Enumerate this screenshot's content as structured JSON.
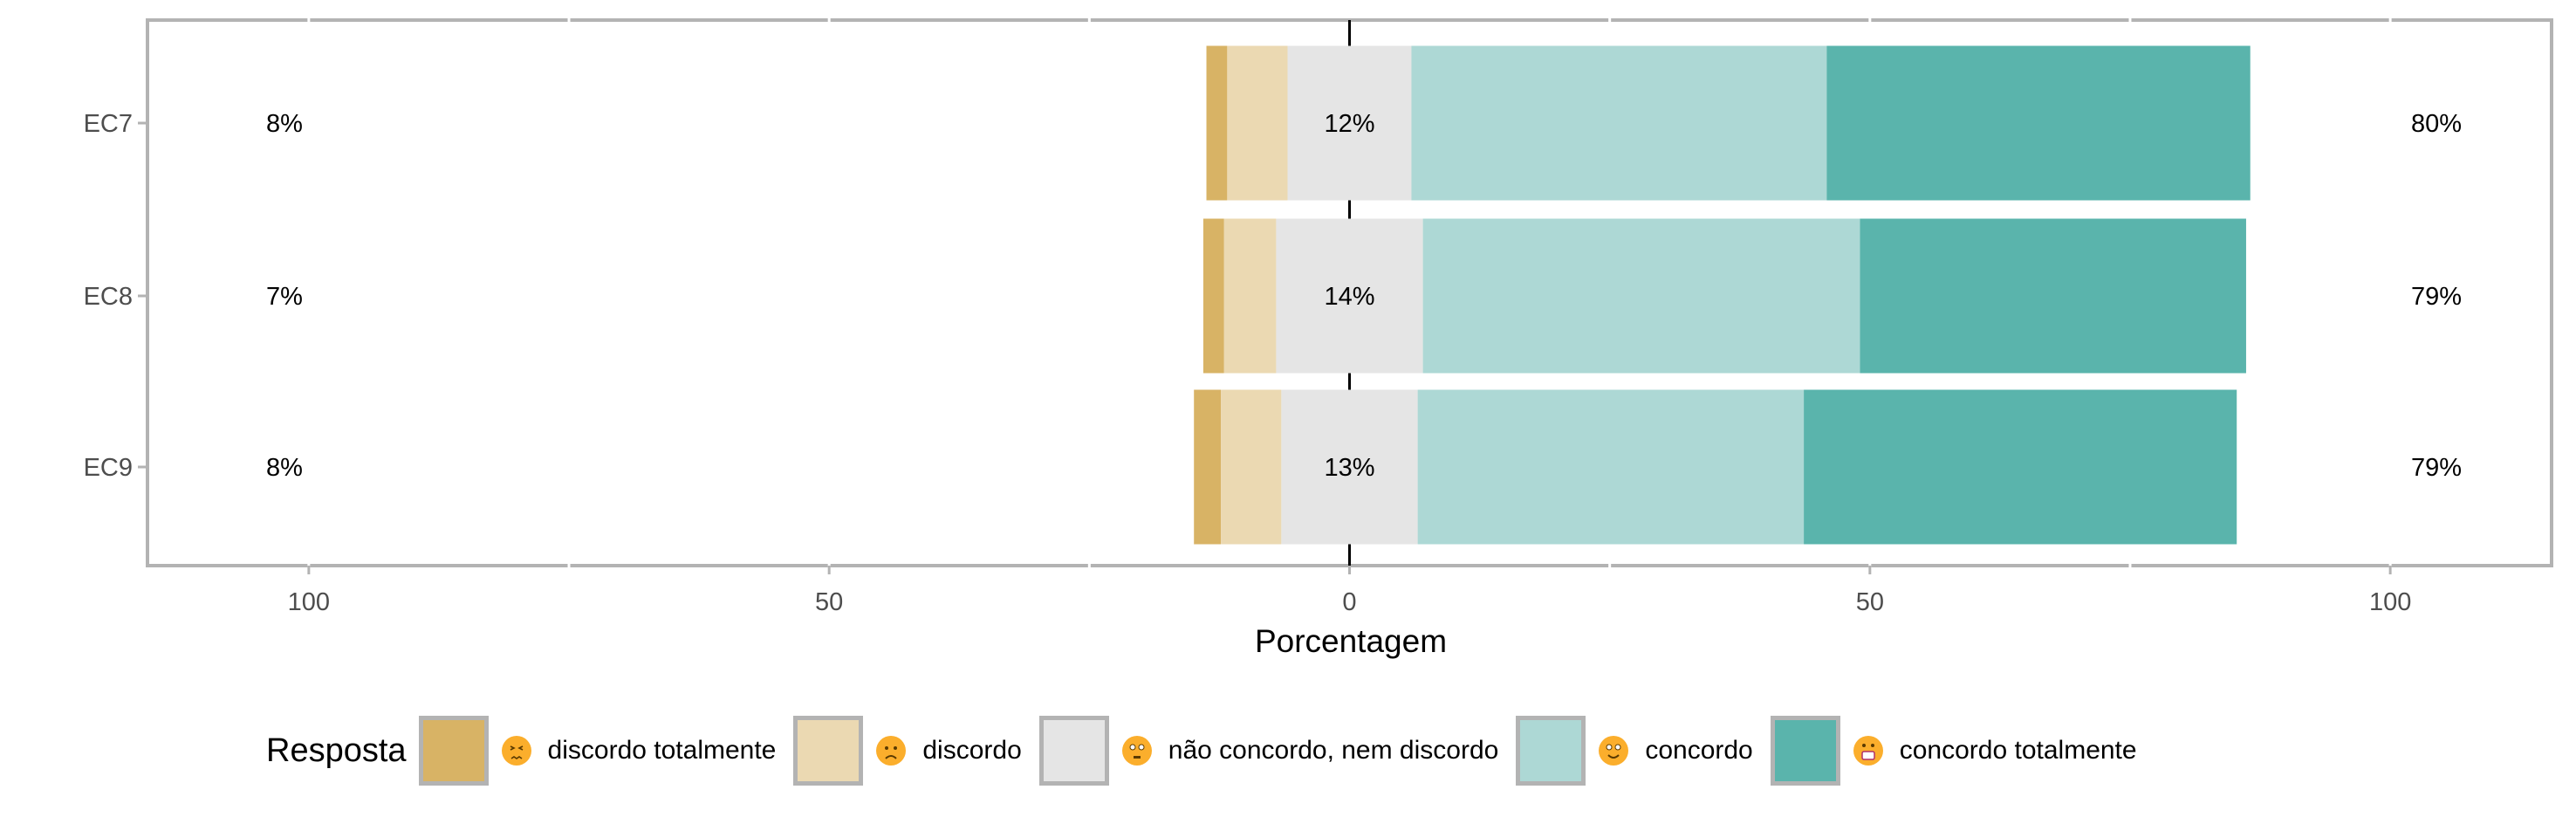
{
  "chart_data": {
    "type": "bar",
    "orientation": "horizontal",
    "stacked": "diverging",
    "categories": [
      "EC7",
      "EC8",
      "EC9"
    ],
    "series": [
      {
        "name": "discordo totalmente",
        "emoji": "confounded-face",
        "color": "#D8B365",
        "values": [
          2.0,
          2.0,
          2.6
        ]
      },
      {
        "name": "discordo",
        "emoji": "frowning-face",
        "color": "#EBD9B2",
        "values": [
          5.8,
          5.0,
          5.8
        ]
      },
      {
        "name": "não concordo, nem discordo",
        "emoji": "neutral-face",
        "color": "#E5E5E5",
        "values": [
          11.9,
          14.1,
          13.1
        ]
      },
      {
        "name": "concordo",
        "emoji": "slightly-smiling-face",
        "color": "#ADD8D5",
        "values": [
          39.9,
          42.0,
          37.1
        ]
      },
      {
        "name": "concordo totalmente",
        "emoji": "grinning-face",
        "color": "#5AB4AC",
        "values": [
          40.7,
          37.1,
          41.6
        ]
      }
    ],
    "labels_left": [
      "8%",
      "7%",
      "8%"
    ],
    "labels_center": [
      "12%",
      "14%",
      "13%"
    ],
    "labels_right": [
      "80%",
      "79%",
      "79%"
    ],
    "xlabel": "Porcentagem",
    "ylabel": "",
    "xlim": [
      -115.5,
      115.5
    ],
    "xticks": [
      -100,
      -50,
      0,
      50,
      100
    ],
    "xtick_labels": [
      "100",
      "50",
      "0",
      "50",
      "100"
    ],
    "grid": true,
    "legend_title": "Resposta",
    "legend_position": "bottom"
  }
}
